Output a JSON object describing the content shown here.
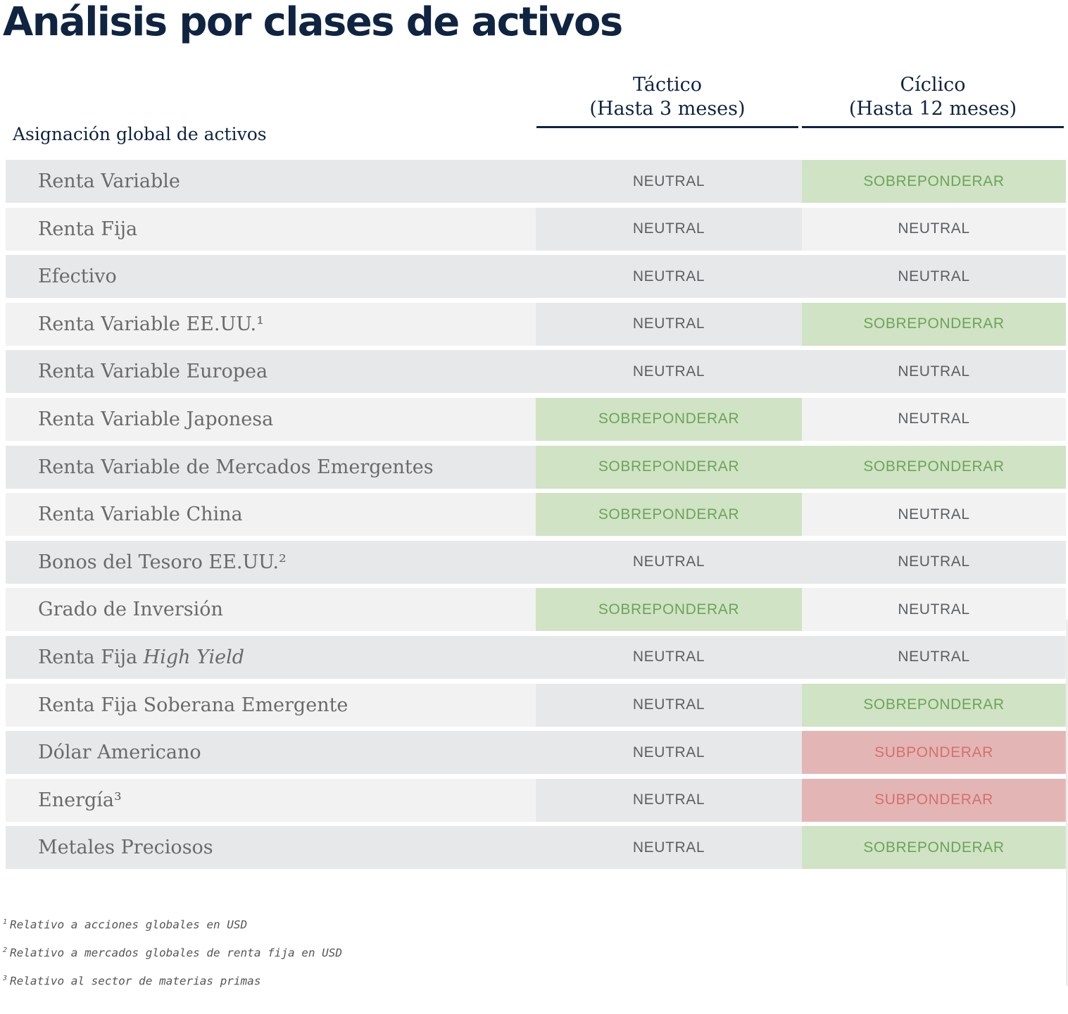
{
  "title": "Análisis por clases de activos",
  "section_label": "Asignación global de activos",
  "columns": {
    "tactical": {
      "line1": "Táctico",
      "line2": "(Hasta 3 meses)"
    },
    "cyclical": {
      "line1": "Cíclico",
      "line2": "(Hasta 12 meses)"
    }
  },
  "colors": {
    "row_dark": "#e7e8ea",
    "row_light": "#f2f2f2",
    "neutral_text": "#5c5f62",
    "overweight_bg": "#d0e3c4",
    "overweight_text": "#6da35a",
    "underweight_bg": "#e3b6b5",
    "underweight_text": "#d4706e"
  },
  "ratings": {
    "NEUTRAL": "NEUTRAL",
    "SOBREPONDERAR": "SOBREPONDERAR",
    "SUBPONDERAR": "SUBPONDERAR"
  },
  "rows": [
    {
      "label": "Renta Variable",
      "tactical": "NEUTRAL",
      "cyclical": "SOBREPONDERAR"
    },
    {
      "label": "Renta Fija",
      "tactical": "NEUTRAL",
      "cyclical": "NEUTRAL"
    },
    {
      "label": "Efectivo",
      "tactical": "NEUTRAL",
      "cyclical": "NEUTRAL"
    },
    {
      "label": "Renta Variable EE.UU.¹",
      "tactical": "NEUTRAL",
      "cyclical": "SOBREPONDERAR"
    },
    {
      "label": "Renta Variable Europea",
      "tactical": "NEUTRAL",
      "cyclical": "NEUTRAL"
    },
    {
      "label": "Renta Variable Japonesa",
      "tactical": "SOBREPONDERAR",
      "cyclical": "NEUTRAL"
    },
    {
      "label": "Renta Variable de Mercados Emergentes",
      "tactical": "SOBREPONDERAR",
      "cyclical": "SOBREPONDERAR"
    },
    {
      "label": "Renta Variable China",
      "tactical": "SOBREPONDERAR",
      "cyclical": "NEUTRAL"
    },
    {
      "label": "Bonos del Tesoro EE.UU.²",
      "tactical": "NEUTRAL",
      "cyclical": "NEUTRAL"
    },
    {
      "label": "Grado de Inversión",
      "tactical": "SOBREPONDERAR",
      "cyclical": "NEUTRAL"
    },
    {
      "label": "Renta Fija",
      "label_italic": "High Yield",
      "tactical": "NEUTRAL",
      "cyclical": "NEUTRAL"
    },
    {
      "label": "Renta Fija Soberana Emergente",
      "tactical": "NEUTRAL",
      "cyclical": "SOBREPONDERAR"
    },
    {
      "label": "Dólar Americano",
      "tactical": "NEUTRAL",
      "cyclical": "SUBPONDERAR"
    },
    {
      "label": "Energía³",
      "tactical": "NEUTRAL",
      "cyclical": "SUBPONDERAR"
    },
    {
      "label": "Metales Preciosos",
      "tactical": "NEUTRAL",
      "cyclical": "SOBREPONDERAR"
    }
  ],
  "footnotes": [
    {
      "mark": "1",
      "text": "Relativo a acciones globales en USD"
    },
    {
      "mark": "2",
      "text": "Relativo a mercados globales de renta fija en USD"
    },
    {
      "mark": "3",
      "text": "Relativo al sector de materias primas"
    }
  ]
}
